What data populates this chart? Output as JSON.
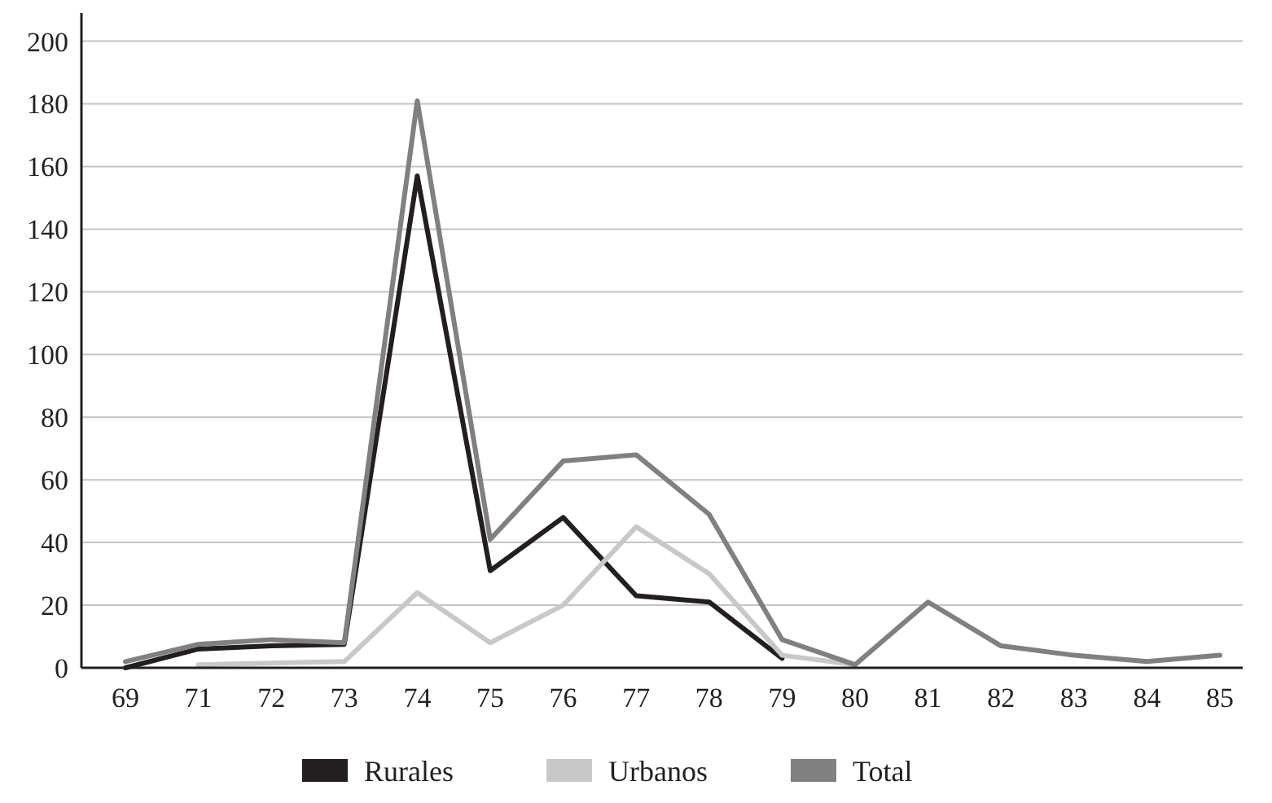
{
  "chart_data": {
    "type": "line",
    "categories": [
      "69",
      "71",
      "72",
      "73",
      "74",
      "75",
      "76",
      "77",
      "78",
      "79",
      "80",
      "81",
      "82",
      "83",
      "84",
      "85"
    ],
    "series": [
      {
        "name": "Rurales",
        "color": "#231f20",
        "values": [
          0,
          6,
          7,
          7.5,
          157,
          31,
          48,
          23,
          21,
          3,
          null,
          null,
          null,
          null,
          null,
          null
        ]
      },
      {
        "name": "Urbanos",
        "color": "#c8c8c8",
        "values": [
          null,
          1,
          1.5,
          2,
          24,
          8,
          20,
          45,
          30,
          4,
          1,
          null,
          null,
          null,
          null,
          null
        ]
      },
      {
        "name": "Total",
        "color": "#808080",
        "values": [
          2,
          7.5,
          9,
          8,
          181,
          41,
          66,
          68,
          49,
          9,
          1,
          21,
          7,
          4,
          2,
          4
        ]
      }
    ],
    "ylim": [
      0,
      209
    ],
    "yticks": [
      0,
      20,
      40,
      60,
      80,
      100,
      120,
      140,
      160,
      180,
      200
    ],
    "grid": "y",
    "legend": "bottom",
    "marker": "none",
    "line_style": "solid"
  }
}
